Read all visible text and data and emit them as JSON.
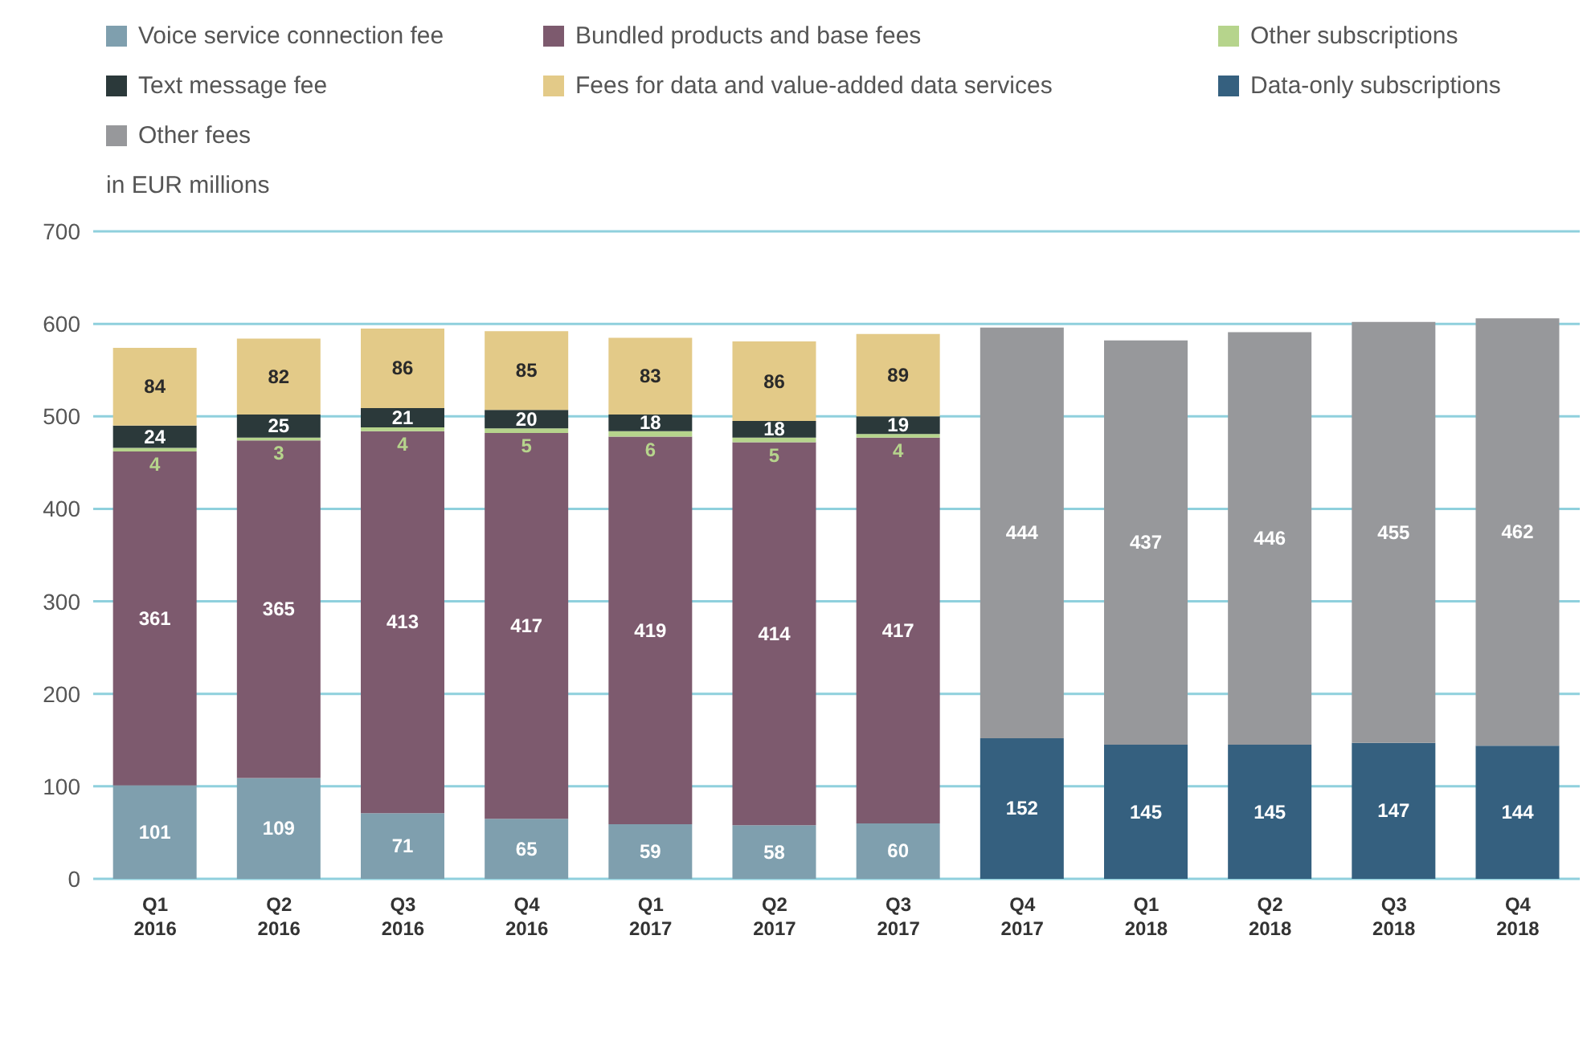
{
  "chart_data": {
    "type": "bar",
    "stacked": true,
    "data_labels": true,
    "legend": "top",
    "grid": "y",
    "ylabel": "in EUR millions",
    "categories": [
      "Q1 2016",
      "Q2 2016",
      "Q3 2016",
      "Q4 2016",
      "Q1 2017",
      "Q2 2017",
      "Q3 2017",
      "Q4 2017",
      "Q1 2018",
      "Q2 2018",
      "Q3 2018",
      "Q4 2018"
    ],
    "ylim": [
      0,
      700
    ],
    "yticks": [
      0,
      100,
      200,
      300,
      400,
      500,
      600,
      700
    ],
    "series": [
      {
        "name": "Voice service connection fee",
        "color": "#7f9fae",
        "values": [
          101,
          109,
          71,
          65,
          59,
          58,
          60,
          null,
          null,
          null,
          null,
          null
        ]
      },
      {
        "name": "Bundled products and base fees",
        "color": "#7d5a6e",
        "values": [
          361,
          365,
          413,
          417,
          419,
          414,
          417,
          null,
          null,
          null,
          null,
          null
        ]
      },
      {
        "name": "Other subscriptions",
        "color": "#b6d48c",
        "values": [
          4,
          3,
          4,
          5,
          6,
          5,
          4,
          null,
          null,
          null,
          null,
          null
        ]
      },
      {
        "name": "Text message fee",
        "color": "#2b393a",
        "values": [
          24,
          25,
          21,
          20,
          18,
          18,
          19,
          null,
          null,
          null,
          null,
          null
        ]
      },
      {
        "name": "Fees for data and value-added data services",
        "color": "#e3ca88",
        "values": [
          84,
          82,
          86,
          85,
          83,
          86,
          89,
          null,
          null,
          null,
          null,
          null
        ]
      },
      {
        "name": "Data-only subscriptions",
        "color": "#35607f",
        "values": [
          null,
          null,
          null,
          null,
          null,
          null,
          null,
          152,
          145,
          145,
          147,
          144
        ]
      },
      {
        "name": "Other fees",
        "color": "#97989b",
        "values": [
          null,
          null,
          null,
          null,
          null,
          null,
          null,
          444,
          437,
          446,
          455,
          462
        ]
      }
    ]
  }
}
